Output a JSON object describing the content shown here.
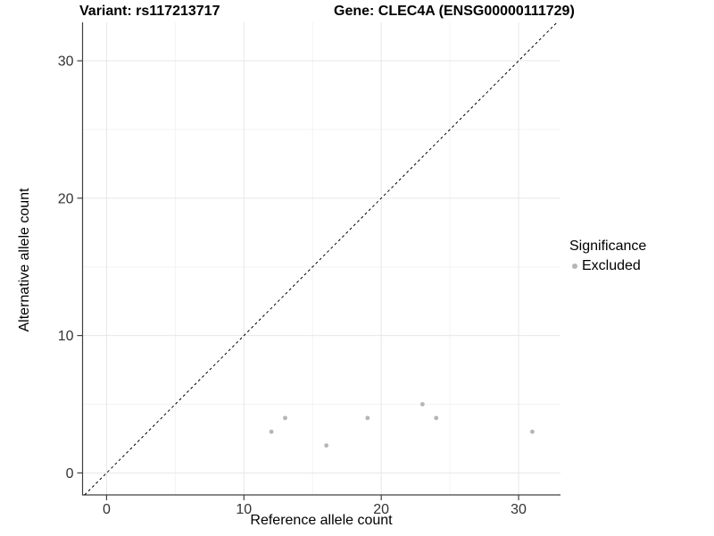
{
  "titles": {
    "variant": "Variant: rs117213717",
    "gene": "Gene: CLEC4A (ENSG00000111729)"
  },
  "legend": {
    "title": "Significance",
    "items": [
      {
        "label": "Excluded",
        "color": "#b5b5b5",
        "icon": "circle-point-icon"
      }
    ],
    "position": "right"
  },
  "chart_data": {
    "type": "scatter",
    "title_left": "Variant: rs117213717",
    "title_right": "Gene: CLEC4A (ENSG00000111729)",
    "xlabel": "Reference allele count",
    "ylabel": "Alternative allele count",
    "xlim": [
      -1.75,
      33.05
    ],
    "ylim": [
      -1.6,
      32.8
    ],
    "x_major_ticks": [
      0,
      10,
      20,
      30
    ],
    "y_major_ticks": [
      0,
      10,
      20,
      30
    ],
    "x_minor_ticks": [
      5,
      15,
      25
    ],
    "y_minor_ticks": [
      5,
      15,
      25
    ],
    "grid": true,
    "series": [
      {
        "name": "Excluded",
        "color": "#b5b5b5",
        "points": [
          [
            12,
            3
          ],
          [
            13,
            4
          ],
          [
            16,
            2
          ],
          [
            19,
            4
          ],
          [
            23,
            5
          ],
          [
            24,
            4
          ],
          [
            31,
            3
          ]
        ]
      }
    ],
    "identity_line": {
      "equation": "y = x",
      "style": "dashed",
      "color": "#000000"
    }
  },
  "colors": {
    "background": "#ffffff",
    "grid_major": "#e7e7e7",
    "grid_minor": "#f3f3f3",
    "axis_line": "#404040",
    "tick_label": "#333333",
    "point": "#b5b5b5",
    "identity_line": "#000000"
  }
}
